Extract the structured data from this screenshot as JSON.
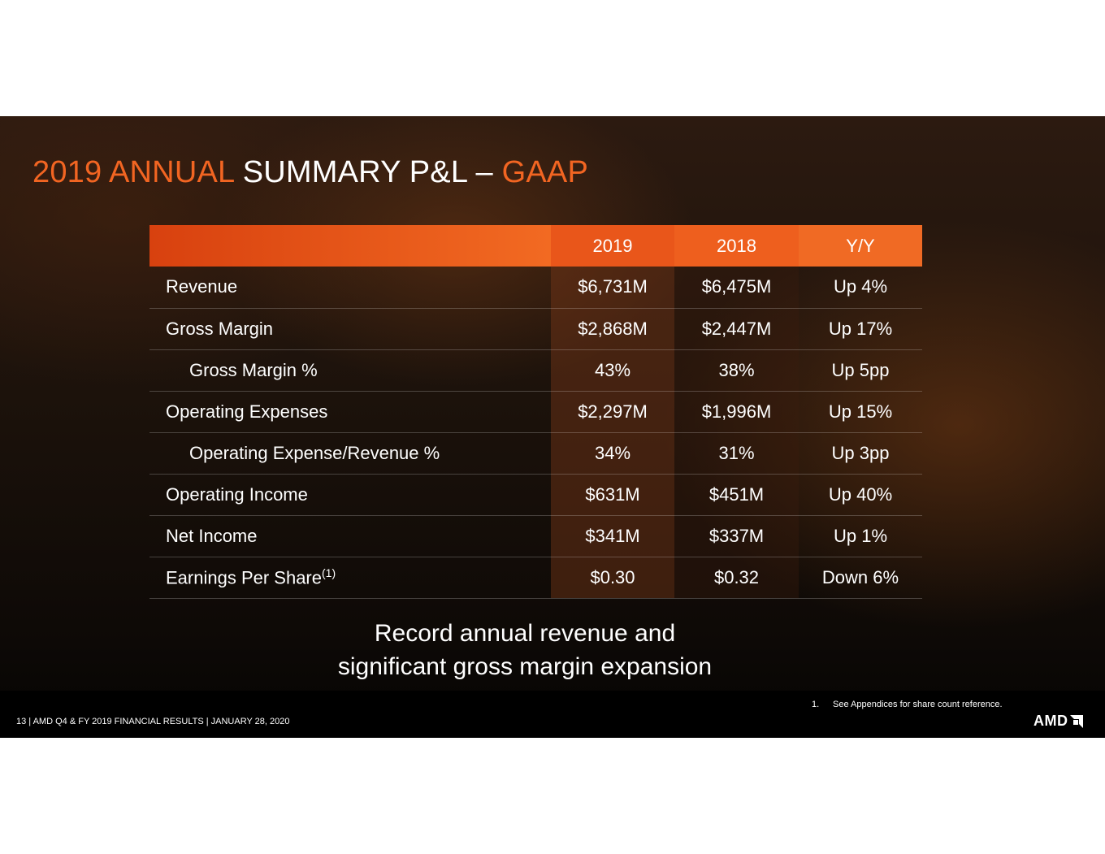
{
  "title": {
    "part1": "2019 ANNUAL",
    "part2": " SUMMARY P&L – ",
    "part3": "GAAP"
  },
  "table": {
    "columns": [
      "",
      "2019",
      "2018",
      "Y/Y"
    ],
    "rows": [
      {
        "label": "Revenue",
        "sup": "",
        "y2019": "$6,731M",
        "y2018": "$6,475M",
        "yy": "Up 4%"
      },
      {
        "label": "Gross Margin",
        "sup": "",
        "y2019": "$2,868M",
        "y2018": "$2,447M",
        "yy": "Up 17%"
      },
      {
        "label": "Gross Margin %",
        "sup": "",
        "y2019": "43%",
        "y2018": "38%",
        "yy": "Up 5pp"
      },
      {
        "label": "Operating Expenses",
        "sup": "",
        "y2019": "$2,297M",
        "y2018": "$1,996M",
        "yy": "Up 15%"
      },
      {
        "label": "Operating Expense/Revenue %",
        "sup": "",
        "y2019": "34%",
        "y2018": "31%",
        "yy": "Up 3pp"
      },
      {
        "label": "Operating Income",
        "sup": "",
        "y2019": "$631M",
        "y2018": "$451M",
        "yy": "Up 40%"
      },
      {
        "label": "Net Income",
        "sup": "",
        "y2019": "$341M",
        "y2018": "$337M",
        "yy": "Up 1%"
      },
      {
        "label": "Earnings Per Share",
        "sup": "(1)",
        "y2019": "$0.30",
        "y2018": "$0.32",
        "yy": "Down 6%"
      }
    ]
  },
  "tagline": {
    "line1": "Record annual revenue and",
    "line2": "significant gross margin expansion"
  },
  "footnote": {
    "number": "1.",
    "text": "See Appendices for share count reference."
  },
  "footer": {
    "text": "13  | AMD Q4 & FY 2019 FINANCIAL RESULTS | JANUARY 28, 2020"
  },
  "logo": {
    "text": "AMD",
    "icon": "amd-arrow-icon"
  },
  "colors": {
    "accent": "#f26522",
    "header_orange": "#ee5a1c",
    "background_dark": "#1c120b"
  }
}
